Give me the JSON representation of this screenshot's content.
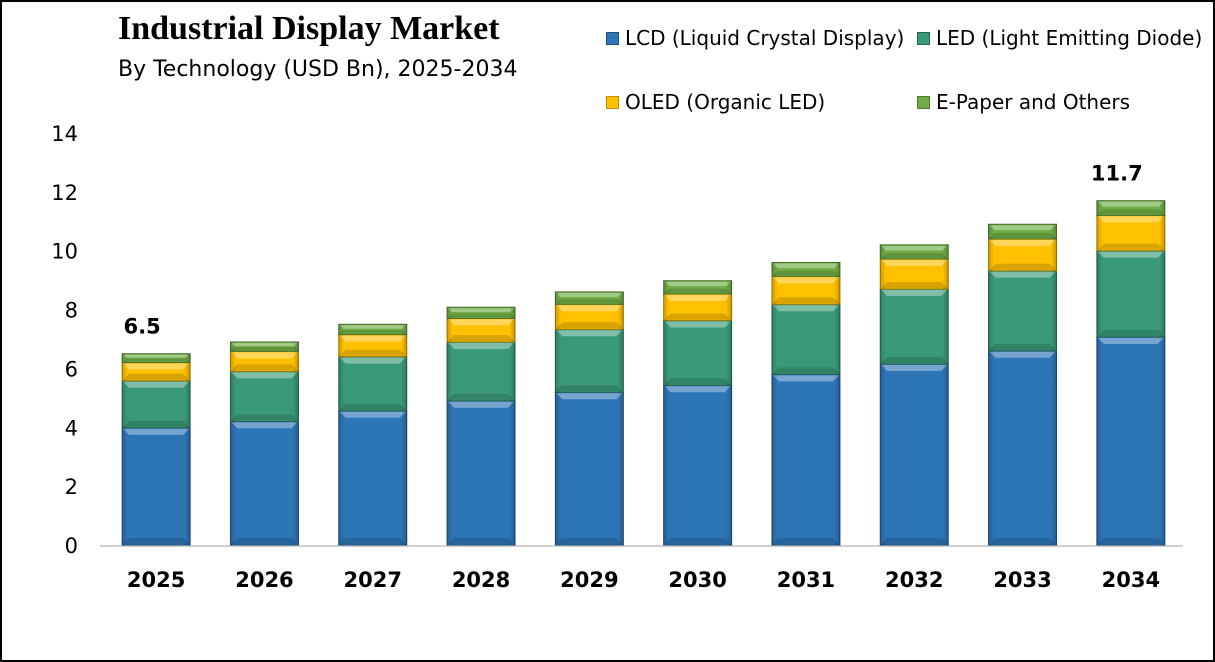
{
  "chart_data": {
    "type": "bar",
    "stacked": true,
    "title": "Industrial Display Market",
    "subtitle": "By Technology (USD Bn), 2025-2034",
    "xlabel": "",
    "ylabel": "",
    "ylim": [
      0,
      14
    ],
    "yticks": [
      0,
      2,
      4,
      6,
      8,
      10,
      12,
      14
    ],
    "grid": false,
    "legend_position": "top-right",
    "categories": [
      "2025",
      "2026",
      "2027",
      "2028",
      "2029",
      "2030",
      "2031",
      "2032",
      "2033",
      "2034"
    ],
    "series": [
      {
        "name": "LCD (Liquid Crystal Display)",
        "color": "#2E75B6",
        "values": [
          3.98,
          4.2,
          4.56,
          4.9,
          5.19,
          5.43,
          5.8,
          6.15,
          6.6,
          7.07
        ]
      },
      {
        "name": "LED (Light Emitting Diode)",
        "color": "#3A9A78",
        "values": [
          1.6,
          1.7,
          1.84,
          2.0,
          2.14,
          2.2,
          2.38,
          2.55,
          2.72,
          2.93
        ]
      },
      {
        "name": "OLED (Organic LED)",
        "color": "#FFC000",
        "values": [
          0.62,
          0.68,
          0.75,
          0.8,
          0.85,
          0.9,
          0.95,
          1.02,
          1.08,
          1.2
        ]
      },
      {
        "name": "E-Paper and Others",
        "color": "#70AD47",
        "values": [
          0.3,
          0.32,
          0.35,
          0.38,
          0.42,
          0.45,
          0.47,
          0.48,
          0.5,
          0.5
        ]
      }
    ],
    "totals": [
      6.5,
      6.9,
      7.5,
      8.08,
      8.6,
      8.98,
      9.6,
      10.2,
      10.9,
      11.7
    ],
    "annotations": [
      {
        "category": "2025",
        "label": "6.5"
      },
      {
        "category": "2034",
        "label": "11.7"
      }
    ]
  },
  "legend": [
    {
      "label": "LCD (Liquid Crystal Display)",
      "color": "#2E75B6",
      "icon": "square-swatch"
    },
    {
      "label": "LED (Light Emitting Diode)",
      "color": "#3A9A78",
      "icon": "square-swatch"
    },
    {
      "label": "OLED (Organic LED)",
      "color": "#FFC000",
      "icon": "square-swatch"
    },
    {
      "label": "E-Paper and Others",
      "color": "#70AD47",
      "icon": "square-swatch"
    }
  ]
}
